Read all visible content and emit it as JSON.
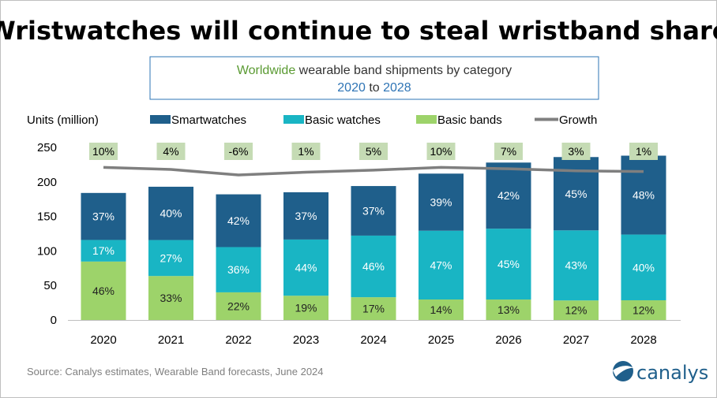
{
  "headline": "Wristwatches will continue to steal wristband share",
  "subtitle": {
    "line1_highlight": "Worldwide",
    "line1_rest": " wearable band shipments by category",
    "line2_start": "2020",
    "line2_mid": " to ",
    "line2_end": "2028"
  },
  "colors": {
    "smartwatches": "#1f5f8b",
    "basic_watches": "#19b5c4",
    "basic_bands": "#9dd36a",
    "growth_line": "#7f7f7f",
    "growth_label_bg": "#c5dbb4",
    "highlight_green": "#5a9a32",
    "highlight_blue": "#2e74b5"
  },
  "source": "Source:  Canalys estimates, Wearable Band forecasts, June 2024",
  "logo_text": "canalys",
  "chart_data": {
    "type": "bar",
    "stacked": true,
    "ylabel": "Units (million)",
    "ylim": [
      0,
      250
    ],
    "yticks": [
      0,
      50,
      100,
      150,
      200,
      250
    ],
    "categories": [
      "2020",
      "2021",
      "2022",
      "2023",
      "2024",
      "2025",
      "2026",
      "2027",
      "2028"
    ],
    "totals": [
      184,
      193,
      182,
      185,
      194,
      212,
      228,
      236,
      238
    ],
    "series": [
      {
        "name": "Basic bands",
        "key": "basic_bands",
        "percent_labels": [
          "46%",
          "33%",
          "22%",
          "19%",
          "17%",
          "14%",
          "13%",
          "12%",
          "12%"
        ]
      },
      {
        "name": "Basic watches",
        "key": "basic_watches",
        "percent_labels": [
          "17%",
          "27%",
          "36%",
          "44%",
          "46%",
          "47%",
          "45%",
          "43%",
          "40%"
        ]
      },
      {
        "name": "Smartwatches",
        "key": "smartwatches",
        "percent_labels": [
          "37%",
          "40%",
          "42%",
          "37%",
          "37%",
          "39%",
          "42%",
          "45%",
          "48%"
        ]
      }
    ],
    "growth": {
      "name": "Growth",
      "labels": [
        "10%",
        "4%",
        "-6%",
        "1%",
        "5%",
        "10%",
        "7%",
        "3%",
        "1%"
      ],
      "line_values": [
        221,
        218,
        210,
        214,
        217,
        221,
        219,
        216,
        215
      ]
    },
    "legend": [
      "Smartwatches",
      "Basic watches",
      "Basic bands",
      "Growth"
    ],
    "legend_position": "top",
    "grid": false
  }
}
